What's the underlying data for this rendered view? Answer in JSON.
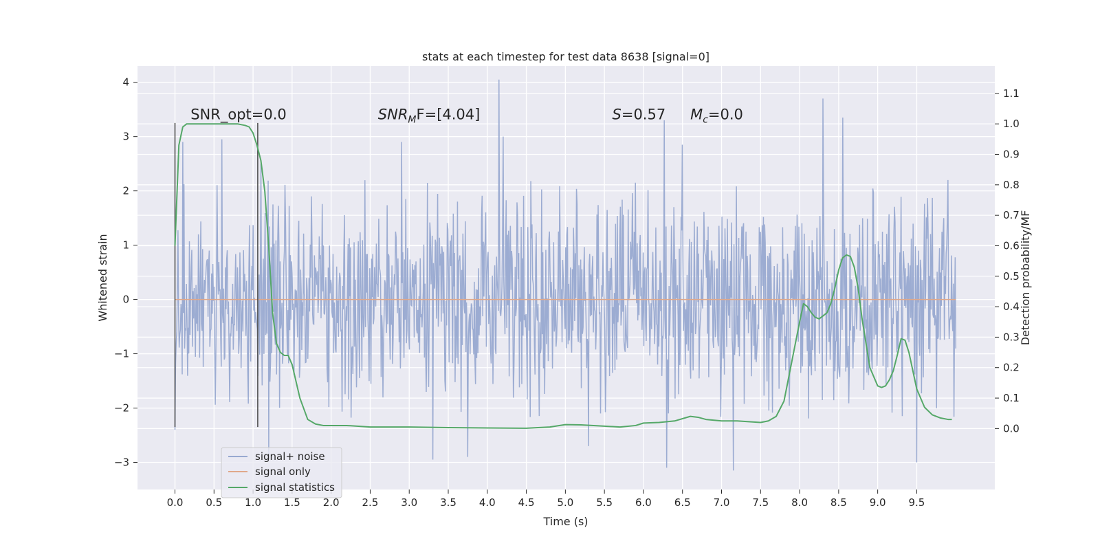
{
  "chart_data": {
    "type": "line",
    "title": "stats at each timestep for test data 8638 [signal=0]",
    "xlabel": "Time (s)",
    "ylabel_left": "Whitened strain",
    "ylabel_right": "Detection probability/MF",
    "xlim": [
      -0.48,
      10.5
    ],
    "ylim_left": [
      -3.5,
      4.3
    ],
    "ylim_right": [
      -0.2,
      1.19
    ],
    "x_ticks": [
      0.0,
      0.5,
      1.0,
      1.5,
      2.0,
      2.5,
      3.0,
      3.5,
      4.0,
      4.5,
      5.0,
      5.5,
      6.0,
      6.5,
      7.0,
      7.5,
      8.0,
      8.5,
      9.0,
      9.5
    ],
    "x_tick_labels": [
      "0.0",
      "0.5",
      "1.0",
      "1.5",
      "2.0",
      "2.5",
      "3.0",
      "3.5",
      "4.0",
      "4.5",
      "5.0",
      "5.5",
      "6.0",
      "6.5",
      "7.0",
      "7.5",
      "8.0",
      "8.5",
      "9.0",
      "9.5"
    ],
    "y_ticks_left": [
      -3,
      -2,
      -1,
      0,
      1,
      2,
      3,
      4
    ],
    "y_tick_labels_left": [
      "−3",
      "−2",
      "−1",
      "0",
      "1",
      "2",
      "3",
      "4"
    ],
    "y_ticks_right": [
      0.0,
      0.1,
      0.2,
      0.3,
      0.4,
      0.5,
      0.6,
      0.7,
      0.8,
      0.9,
      1.0,
      1.1
    ],
    "y_tick_labels_right": [
      "0.0",
      "0.1",
      "0.2",
      "0.3",
      "0.4",
      "0.5",
      "0.6",
      "0.7",
      "0.8",
      "0.9",
      "1.0",
      "1.1"
    ],
    "grid": true,
    "legend_position": "lower-left",
    "colors": {
      "noise": "#98A9D0",
      "signal_only": "#E0A88A",
      "statistics": "#55A868",
      "marker": "#505050",
      "axes_bg": "#EAEAF2",
      "grid": "#FFFFFF"
    },
    "series": [
      {
        "name": "signal+ noise",
        "axis": "left",
        "duration_s": 10.0,
        "typical_range": [
          -2.2,
          2.2
        ],
        "notable_peaks": [
          [
            0.1,
            2.9
          ],
          [
            0.6,
            2.95
          ],
          [
            1.1,
            2.5
          ],
          [
            2.9,
            2.9
          ],
          [
            4.15,
            4.05
          ],
          [
            4.2,
            3.0
          ],
          [
            6.27,
            3.3
          ],
          [
            6.5,
            2.85
          ],
          [
            8.3,
            3.7
          ],
          [
            8.55,
            3.35
          ],
          [
            9.9,
            2.2
          ]
        ],
        "notable_troughs": [
          [
            0.0,
            -2.4
          ],
          [
            1.2,
            -2.85
          ],
          [
            3.3,
            -2.95
          ],
          [
            3.75,
            -2.9
          ],
          [
            5.3,
            -2.7
          ],
          [
            6.3,
            -3.1
          ],
          [
            7.15,
            -3.15
          ],
          [
            9.5,
            -3.0
          ]
        ]
      },
      {
        "name": "signal only",
        "axis": "left",
        "x": [
          0.0,
          10.0
        ],
        "y": [
          0.0,
          0.0
        ]
      },
      {
        "name": "signal statistics",
        "axis": "right",
        "x": [
          0.0,
          0.05,
          0.1,
          0.15,
          0.2,
          0.3,
          0.4,
          0.5,
          0.6,
          0.7,
          0.8,
          0.9,
          0.95,
          1.0,
          1.05,
          1.1,
          1.15,
          1.2,
          1.25,
          1.3,
          1.35,
          1.4,
          1.45,
          1.5,
          1.6,
          1.7,
          1.8,
          1.9,
          2.0,
          2.2,
          2.5,
          3.0,
          3.5,
          4.0,
          4.5,
          4.8,
          5.0,
          5.2,
          5.5,
          5.7,
          5.9,
          6.0,
          6.2,
          6.4,
          6.6,
          6.7,
          6.8,
          7.0,
          7.2,
          7.5,
          7.6,
          7.7,
          7.8,
          7.9,
          8.0,
          8.05,
          8.1,
          8.15,
          8.2,
          8.25,
          8.3,
          8.35,
          8.4,
          8.45,
          8.5,
          8.55,
          8.6,
          8.65,
          8.7,
          8.75,
          8.8,
          8.9,
          9.0,
          9.05,
          9.1,
          9.15,
          9.2,
          9.25,
          9.3,
          9.35,
          9.4,
          9.5,
          9.6,
          9.7,
          9.8,
          9.9,
          9.95
        ],
        "y": [
          0.6,
          0.93,
          0.99,
          1.0,
          1.0,
          1.0,
          1.0,
          1.0,
          1.0,
          1.0,
          1.0,
          0.995,
          0.99,
          0.97,
          0.93,
          0.88,
          0.78,
          0.6,
          0.38,
          0.28,
          0.25,
          0.24,
          0.24,
          0.21,
          0.1,
          0.03,
          0.015,
          0.01,
          0.01,
          0.01,
          0.005,
          0.005,
          0.003,
          0.002,
          0.001,
          0.005,
          0.013,
          0.012,
          0.008,
          0.005,
          0.01,
          0.018,
          0.02,
          0.025,
          0.04,
          0.037,
          0.03,
          0.025,
          0.025,
          0.02,
          0.025,
          0.04,
          0.09,
          0.22,
          0.35,
          0.41,
          0.4,
          0.38,
          0.365,
          0.36,
          0.37,
          0.38,
          0.41,
          0.46,
          0.52,
          0.56,
          0.57,
          0.565,
          0.53,
          0.46,
          0.36,
          0.2,
          0.14,
          0.135,
          0.14,
          0.16,
          0.19,
          0.24,
          0.295,
          0.29,
          0.25,
          0.13,
          0.07,
          0.045,
          0.035,
          0.03,
          0.03
        ]
      }
    ],
    "markers": [
      {
        "x": 0.0,
        "y_range": [
          -2.35,
          3.25
        ]
      },
      {
        "x": 1.06,
        "y_range": [
          -2.35,
          3.25
        ]
      }
    ],
    "annotations": [
      {
        "text_plain": "SNR_opt=0.0",
        "x": 0.2,
        "y": 3.32
      },
      {
        "text_italic": "SNR",
        "subscript": "M",
        "text_rest": "F=[4.04]",
        "x": 2.6,
        "y": 3.32
      },
      {
        "text_italic": "S",
        "text_rest": "=0.57",
        "x": 5.6,
        "y": 3.32
      },
      {
        "text_italic": "M",
        "subscript": "c",
        "text_rest": "=0.0",
        "x": 6.6,
        "y": 3.32
      }
    ]
  }
}
